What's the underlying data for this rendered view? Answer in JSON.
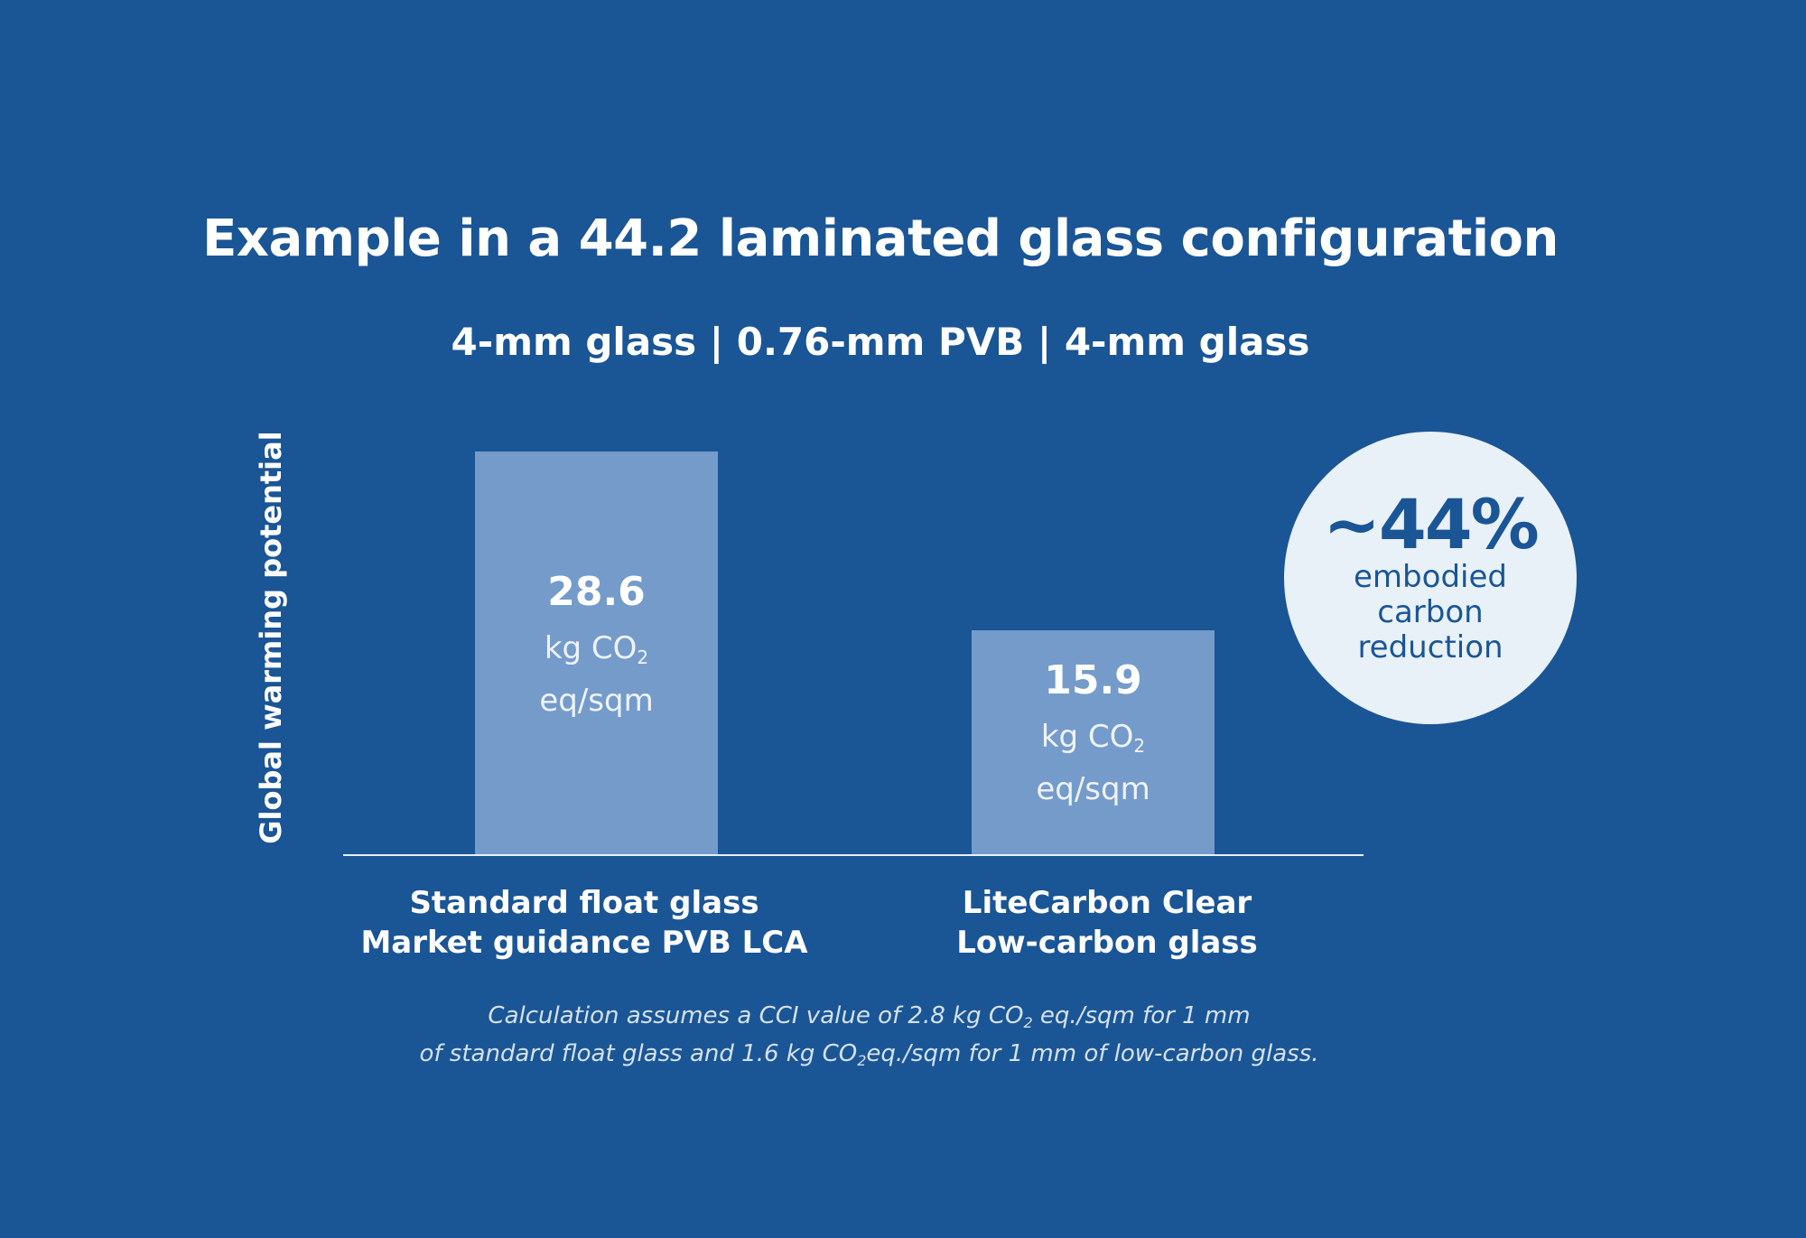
{
  "chart_data": {
    "type": "bar",
    "title": "Example in a 44.2 laminated glass configuration",
    "subtitle": "4-mm glass | 0.76-mm PVB | 4-mm glass",
    "ylabel": "Global warming potential",
    "categories": [
      {
        "line1": "Standard float glass",
        "line2": "Market guidance PVB LCA"
      },
      {
        "line1": "LiteCarbon Clear",
        "line2": "Low-carbon glass"
      }
    ],
    "values": [
      28.6,
      15.9
    ],
    "value_labels": [
      "28.6",
      "15.9"
    ],
    "unit": {
      "prefix": "kg CO",
      "sub": "2",
      "suffix": "eq/sqm"
    },
    "ylim": [
      0,
      28.6
    ],
    "grid": false,
    "colors": {
      "background": "#1a5596",
      "bar": "#749bca",
      "badge": "#e8f1f8"
    }
  },
  "badge": {
    "percent": "~44%",
    "lines": [
      "embodied",
      "carbon",
      "reduction"
    ]
  },
  "footnote": {
    "l1_a": "Calculation assumes a CCI value of 2.8 kg CO",
    "l1_sub": "2",
    "l1_b": " eq./sqm for 1 mm",
    "l2_a": "of standard float glass and 1.6 kg CO",
    "l2_sub": "2",
    "l2_b": "eq./sqm for 1 mm of low-carbon glass."
  }
}
